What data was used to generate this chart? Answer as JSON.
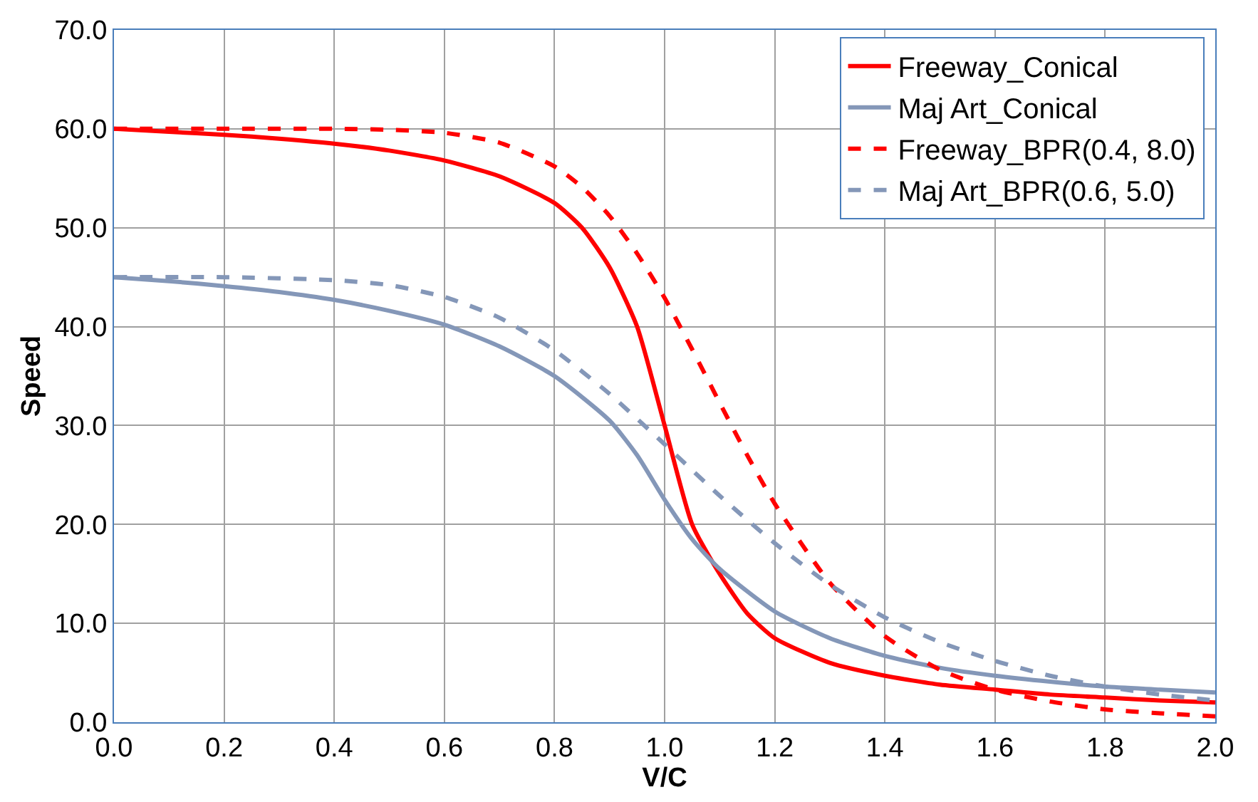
{
  "chart_data": {
    "type": "line",
    "xlabel": "V/C",
    "ylabel": "Speed",
    "xlim": [
      0,
      2
    ],
    "ylim": [
      0,
      70
    ],
    "xticks": [
      {
        "value": 0,
        "label": "0.0"
      },
      {
        "value": 0.2,
        "label": "0.2"
      },
      {
        "value": 0.4,
        "label": "0.4"
      },
      {
        "value": 0.6,
        "label": "0.6"
      },
      {
        "value": 0.8,
        "label": "0.8"
      },
      {
        "value": 1,
        "label": "1.0"
      },
      {
        "value": 1.2,
        "label": "1.2"
      },
      {
        "value": 1.4,
        "label": "1.4"
      },
      {
        "value": 1.6,
        "label": "1.6"
      },
      {
        "value": 1.8,
        "label": "1.8"
      },
      {
        "value": 2,
        "label": "2.0"
      }
    ],
    "yticks": [
      {
        "value": 0,
        "label": "0.0"
      },
      {
        "value": 10,
        "label": "10.0"
      },
      {
        "value": 20,
        "label": "20.0"
      },
      {
        "value": 30,
        "label": "30.0"
      },
      {
        "value": 40,
        "label": "40.0"
      },
      {
        "value": 50,
        "label": "50.0"
      },
      {
        "value": 60,
        "label": "60.0"
      },
      {
        "value": 70,
        "label": "70.0"
      }
    ],
    "grid": true,
    "legend": "top right",
    "marker": "none",
    "series": [
      {
        "name": "Freeway_Conical",
        "color": "#ff0000",
        "line_style": "solid",
        "x": [
          0,
          0.1,
          0.2,
          0.3,
          0.4,
          0.5,
          0.6,
          0.7,
          0.8,
          0.85,
          0.9,
          0.95,
          1.0,
          1.05,
          1.1,
          1.15,
          1.2,
          1.3,
          1.4,
          1.5,
          1.6,
          1.7,
          1.8,
          1.9,
          2.0
        ],
        "values": [
          60,
          59.7,
          59.4,
          59.0,
          58.5,
          57.8,
          56.8,
          55.2,
          52.5,
          50,
          46,
          40,
          30,
          20,
          15,
          11,
          8.5,
          6,
          4.7,
          3.8,
          3.3,
          2.8,
          2.5,
          2.2,
          2.0
        ]
      },
      {
        "name": "Maj Art_Conical",
        "color": "#8497b8",
        "line_style": "solid",
        "x": [
          0,
          0.1,
          0.2,
          0.3,
          0.4,
          0.5,
          0.6,
          0.7,
          0.8,
          0.9,
          0.95,
          1.0,
          1.05,
          1.1,
          1.2,
          1.3,
          1.4,
          1.5,
          1.6,
          1.7,
          1.8,
          1.9,
          2.0
        ],
        "values": [
          45,
          44.6,
          44.1,
          43.5,
          42.7,
          41.6,
          40.2,
          38,
          35,
          30.5,
          27,
          22.5,
          18.5,
          15.5,
          11.2,
          8.5,
          6.7,
          5.5,
          4.7,
          4.1,
          3.6,
          3.3,
          3.0
        ]
      },
      {
        "name": "Freeway_BPR(0.4, 8.0)",
        "color": "#ff0000",
        "line_style": "dashed",
        "x": [
          0,
          0.2,
          0.4,
          0.5,
          0.6,
          0.7,
          0.8,
          0.85,
          0.9,
          0.95,
          1.0,
          1.05,
          1.1,
          1.15,
          1.2,
          1.3,
          1.4,
          1.5,
          1.6,
          1.7,
          1.8,
          1.9,
          2.0
        ],
        "values": [
          60,
          60,
          60,
          59.9,
          59.6,
          58.6,
          56.2,
          54.1,
          51.2,
          47.4,
          42.9,
          37.7,
          32.3,
          27.0,
          22.1,
          14.1,
          8.7,
          5.3,
          3.3,
          2.1,
          1.3,
          0.9,
          0.6
        ]
      },
      {
        "name": "Maj Art_BPR(0.6, 5.0)",
        "color": "#8497b8",
        "line_style": "dashed",
        "x": [
          0,
          0.2,
          0.4,
          0.5,
          0.6,
          0.7,
          0.8,
          0.9,
          1.0,
          1.1,
          1.2,
          1.3,
          1.4,
          1.5,
          1.6,
          1.7,
          1.8,
          1.9,
          2.0
        ],
        "values": [
          45,
          45,
          44.7,
          44.2,
          43.0,
          40.9,
          37.6,
          33.2,
          28.1,
          22.9,
          18.1,
          13.9,
          10.6,
          8.1,
          6.2,
          4.7,
          3.6,
          2.8,
          2.2
        ]
      }
    ]
  }
}
